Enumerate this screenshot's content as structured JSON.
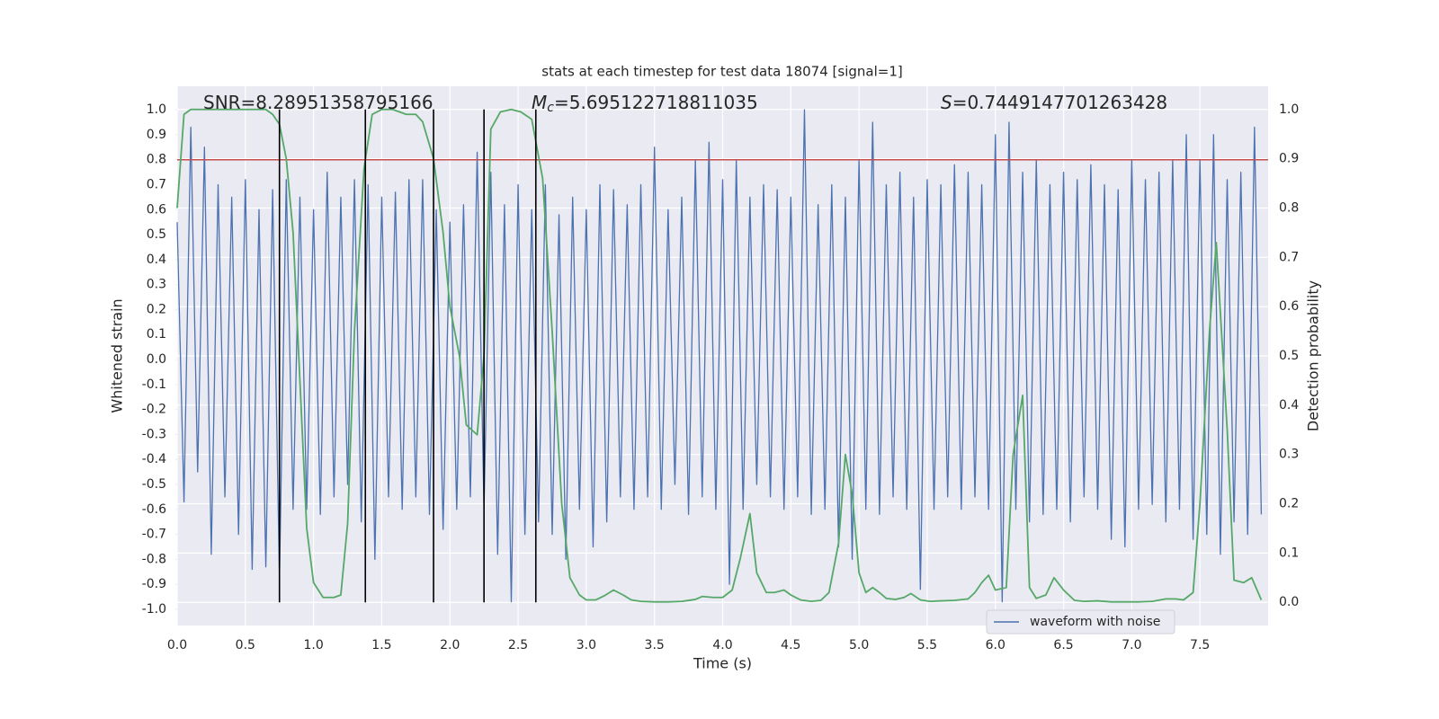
{
  "chart_data": {
    "type": "line",
    "title": "stats at each timestep for test data 18074 [signal=1]",
    "xlabel": "Time (s)",
    "ylabel": "Whitened strain",
    "y2label": "Detection probability",
    "annotations": [
      {
        "text": "SNR=8.28951358795166"
      },
      {
        "symbol": "M",
        "subscript": "c",
        "text": "=5.695122718811035"
      },
      {
        "symbol": "S",
        "text": "=0.7449147701263428"
      }
    ],
    "xlim": [
      0,
      8.0
    ],
    "ylim": [
      -1.065,
      1.094
    ],
    "y2lim": [
      -0.047,
      1.047
    ],
    "xticks": [
      {
        "value": 0,
        "label": "0.0"
      },
      0.5,
      {
        "value": 1,
        "label": "1.0"
      },
      1.5,
      {
        "value": 2,
        "label": "2.0"
      },
      2.5,
      {
        "value": 3,
        "label": "3.0"
      },
      3.5,
      {
        "value": 4,
        "label": "4.0"
      },
      4.5,
      {
        "value": 5,
        "label": "5.0"
      },
      5.5,
      {
        "value": 6,
        "label": "6.0"
      },
      6.5,
      {
        "value": 7,
        "label": "7.0"
      },
      7.5
    ],
    "yticks": [
      {
        "value": 1,
        "label": "1.0"
      },
      0.9,
      0.8,
      0.7,
      0.6,
      0.5,
      0.4,
      0.3,
      0.2,
      0.1,
      {
        "value": 0,
        "label": "0.0"
      },
      -0.1,
      -0.2,
      -0.3,
      -0.4,
      -0.5,
      -0.6,
      -0.7,
      -0.8,
      -0.9,
      {
        "value": -1,
        "label": "-1.0"
      }
    ],
    "y2ticks": [
      {
        "value": 0,
        "label": "0.0"
      },
      0.1,
      0.2,
      0.3,
      0.4,
      0.5,
      0.6,
      0.7,
      0.8,
      0.9,
      {
        "value": 1,
        "label": "1.0"
      }
    ],
    "grid": true,
    "legend": "lower right",
    "hline": {
      "y": 0.8,
      "color": "#c44e52"
    },
    "vlines": {
      "x": [
        0.75,
        1.38,
        1.88,
        2.25,
        2.63
      ],
      "y2min": 0,
      "y2max": 1.0,
      "color": "#000000"
    },
    "series": [
      {
        "name": "waveform with noise",
        "color": "#4c72b0",
        "x": [
          0,
          0.05,
          0.1,
          0.15,
          0.2,
          0.25,
          0.3,
          0.35,
          0.4,
          0.45,
          0.5,
          0.55,
          0.6,
          0.65,
          0.7,
          0.75,
          0.8,
          0.85,
          0.9,
          0.95,
          1,
          1.05,
          1.1,
          1.15,
          1.2,
          1.25,
          1.3,
          1.35,
          1.4,
          1.45,
          1.5,
          1.55,
          1.6,
          1.65,
          1.7,
          1.75,
          1.8,
          1.85,
          1.9,
          1.95,
          2,
          2.05,
          2.1,
          2.15,
          2.2,
          2.25,
          2.3,
          2.35,
          2.4,
          2.45,
          2.5,
          2.55,
          2.6,
          2.65,
          2.7,
          2.75,
          2.8,
          2.85,
          2.9,
          2.95,
          3,
          3.05,
          3.1,
          3.15,
          3.2,
          3.25,
          3.3,
          3.35,
          3.4,
          3.45,
          3.5,
          3.55,
          3.6,
          3.65,
          3.7,
          3.75,
          3.8,
          3.85,
          3.9,
          3.95,
          4,
          4.05,
          4.1,
          4.15,
          4.2,
          4.25,
          4.3,
          4.35,
          4.4,
          4.45,
          4.5,
          4.55,
          4.6,
          4.65,
          4.7,
          4.75,
          4.8,
          4.85,
          4.9,
          4.95,
          5,
          5.05,
          5.1,
          5.15,
          5.2,
          5.25,
          5.3,
          5.35,
          5.4,
          5.45,
          5.5,
          5.55,
          5.6,
          5.65,
          5.7,
          5.75,
          5.8,
          5.85,
          5.9,
          5.95,
          6,
          6.05,
          6.1,
          6.15,
          6.2,
          6.25,
          6.3,
          6.35,
          6.4,
          6.45,
          6.5,
          6.55,
          6.6,
          6.65,
          6.7,
          6.75,
          6.8,
          6.85,
          6.9,
          6.95,
          7,
          7.05,
          7.1,
          7.15,
          7.2,
          7.25,
          7.3,
          7.35,
          7.4,
          7.45,
          7.5,
          7.55,
          7.6,
          7.65,
          7.7,
          7.75,
          7.8,
          7.85,
          7.9,
          7.95
        ],
        "values": [
          0.55,
          -0.57,
          0.93,
          -0.45,
          0.85,
          -0.78,
          0.7,
          -0.55,
          0.65,
          -0.7,
          0.72,
          -0.84,
          0.6,
          -0.83,
          0.68,
          -0.88,
          0.72,
          -0.6,
          0.65,
          -0.6,
          0.6,
          -0.62,
          0.75,
          -0.55,
          0.65,
          -0.5,
          0.72,
          -0.65,
          0.7,
          -0.8,
          0.65,
          -0.55,
          0.67,
          -0.6,
          0.72,
          -0.55,
          0.72,
          -0.62,
          0.6,
          -0.68,
          0.55,
          -0.6,
          0.62,
          -0.55,
          0.83,
          -0.6,
          0.75,
          -0.78,
          0.62,
          -0.97,
          0.7,
          -0.7,
          0.6,
          -0.65,
          0.7,
          -0.7,
          0.58,
          -0.8,
          0.65,
          -0.6,
          0.6,
          -0.75,
          0.7,
          -0.65,
          0.68,
          -0.55,
          0.62,
          -0.6,
          0.7,
          -0.55,
          0.85,
          -0.6,
          0.6,
          -0.5,
          0.65,
          -0.62,
          0.8,
          -0.55,
          0.87,
          -0.6,
          0.72,
          -0.9,
          0.8,
          -0.6,
          0.65,
          -0.5,
          0.7,
          -0.55,
          0.68,
          -0.6,
          0.65,
          -0.55,
          1.0,
          -0.62,
          0.62,
          -0.6,
          0.7,
          -0.75,
          0.65,
          -0.8,
          0.8,
          -0.6,
          0.95,
          -0.62,
          0.7,
          -0.55,
          0.75,
          -0.6,
          0.65,
          -0.92,
          0.72,
          -0.6,
          0.7,
          -0.55,
          0.78,
          -0.6,
          0.75,
          -0.55,
          0.7,
          -0.6,
          0.9,
          -0.97,
          0.95,
          -0.6,
          0.75,
          -0.65,
          0.8,
          -0.62,
          0.7,
          -0.6,
          0.75,
          -0.65,
          0.72,
          -0.55,
          0.78,
          -0.6,
          0.7,
          -0.72,
          0.68,
          -0.75,
          0.8,
          -0.6,
          0.72,
          -0.58,
          0.75,
          -0.65,
          0.8,
          -0.6,
          0.9,
          -0.72,
          0.8,
          -0.7,
          0.9,
          -0.78,
          0.72,
          -0.65,
          0.75,
          -0.7,
          0.93,
          -0.62
        ]
      },
      {
        "color": "#55a868",
        "axis": "y2",
        "x": [
          0,
          0.05,
          0.1,
          0.2,
          0.3,
          0.4,
          0.5,
          0.65,
          0.7,
          0.75,
          0.8,
          0.85,
          0.9,
          0.95,
          1.0,
          1.07,
          1.15,
          1.2,
          1.25,
          1.3,
          1.37,
          1.43,
          1.5,
          1.58,
          1.68,
          1.75,
          1.8,
          1.88,
          1.95,
          2.0,
          2.07,
          2.12,
          2.2,
          2.25,
          2.3,
          2.37,
          2.45,
          2.52,
          2.6,
          2.68,
          2.75,
          2.82,
          2.88,
          2.95,
          3.0,
          3.07,
          3.13,
          3.2,
          3.27,
          3.33,
          3.4,
          3.5,
          3.6,
          3.7,
          3.8,
          3.85,
          3.93,
          4.0,
          4.07,
          4.13,
          4.2,
          4.25,
          4.32,
          4.38,
          4.45,
          4.5,
          4.57,
          4.65,
          4.72,
          4.78,
          4.85,
          4.9,
          4.95,
          5.0,
          5.05,
          5.1,
          5.15,
          5.2,
          5.27,
          5.33,
          5.38,
          5.45,
          5.52,
          5.6,
          5.7,
          5.8,
          5.85,
          5.9,
          5.95,
          6.0,
          6.08,
          6.13,
          6.2,
          6.25,
          6.3,
          6.37,
          6.43,
          6.5,
          6.58,
          6.65,
          6.75,
          6.85,
          6.95,
          7.05,
          7.15,
          7.25,
          7.32,
          7.38,
          7.45,
          7.5,
          7.57,
          7.62,
          7.7,
          7.75,
          7.82,
          7.88,
          7.95
        ],
        "values": [
          0.8,
          0.99,
          1.0,
          1.0,
          1.0,
          1.0,
          1.0,
          1.0,
          0.99,
          0.97,
          0.9,
          0.75,
          0.45,
          0.15,
          0.04,
          0.01,
          0.01,
          0.015,
          0.16,
          0.55,
          0.88,
          0.99,
          1.0,
          1.0,
          0.99,
          0.99,
          0.975,
          0.9,
          0.75,
          0.6,
          0.5,
          0.36,
          0.34,
          0.5,
          0.96,
          0.995,
          1.0,
          0.995,
          0.98,
          0.86,
          0.55,
          0.2,
          0.05,
          0.015,
          0.005,
          0.005,
          0.013,
          0.025,
          0.015,
          0.005,
          0.002,
          0.001,
          0.001,
          0.002,
          0.006,
          0.012,
          0.01,
          0.01,
          0.025,
          0.09,
          0.18,
          0.06,
          0.02,
          0.02,
          0.025,
          0.015,
          0.005,
          0.002,
          0.004,
          0.02,
          0.12,
          0.3,
          0.22,
          0.06,
          0.02,
          0.03,
          0.02,
          0.008,
          0.006,
          0.01,
          0.018,
          0.005,
          0.002,
          0.003,
          0.004,
          0.007,
          0.02,
          0.04,
          0.055,
          0.025,
          0.03,
          0.3,
          0.42,
          0.03,
          0.008,
          0.015,
          0.05,
          0.025,
          0.004,
          0.002,
          0.003,
          0.001,
          0.001,
          0.001,
          0.002,
          0.007,
          0.007,
          0.005,
          0.02,
          0.2,
          0.55,
          0.73,
          0.35,
          0.045,
          0.04,
          0.05,
          0.005
        ]
      }
    ]
  }
}
